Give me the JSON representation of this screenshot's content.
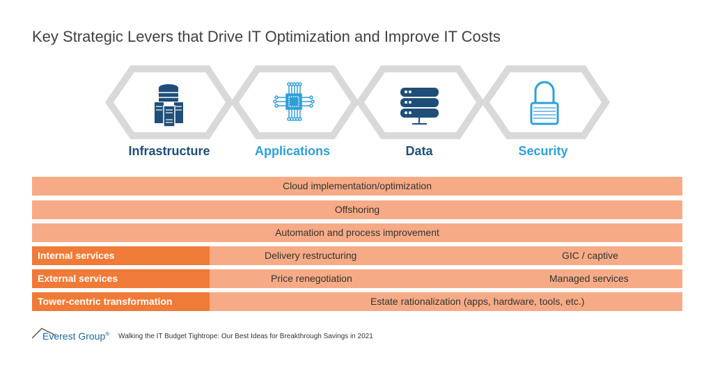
{
  "title": "Key Strategic Levers that Drive IT Optimization and Improve IT Costs",
  "pillars": [
    {
      "label": "Infrastructure",
      "icon": "server-database-icon",
      "color": "#1F4E79"
    },
    {
      "label": "Applications",
      "icon": "chip-circuit-icon",
      "color": "#2E9FD8"
    },
    {
      "label": "Data",
      "icon": "server-rack-icon",
      "color": "#1F4E79"
    },
    {
      "label": "Security",
      "icon": "padlock-icon",
      "color": "#2E9FD8"
    }
  ],
  "levers": [
    {
      "text": "Cloud implementation/optimization"
    },
    {
      "text": "Offshoring"
    },
    {
      "text": "Automation and process improvement"
    }
  ],
  "services": [
    {
      "label": "Internal services",
      "left": "Delivery restructuring",
      "right": "GIC / captive"
    },
    {
      "label": "External services",
      "left": "Price renegotiation",
      "right": "Managed services"
    },
    {
      "label": "Tower-centric transformation",
      "center": "Estate rationalization (apps, hardware, tools, etc.)"
    }
  ],
  "colors": {
    "dark_orange": "#F07A37",
    "light_orange": "#F6AB86",
    "hex_grey": "#D9D9D9"
  },
  "footer": {
    "brand": "Everest Group",
    "registered": "®",
    "source": "Walking the IT Budget Tightrope: Our Best Ideas for Breakthrough Savings in 2021"
  }
}
